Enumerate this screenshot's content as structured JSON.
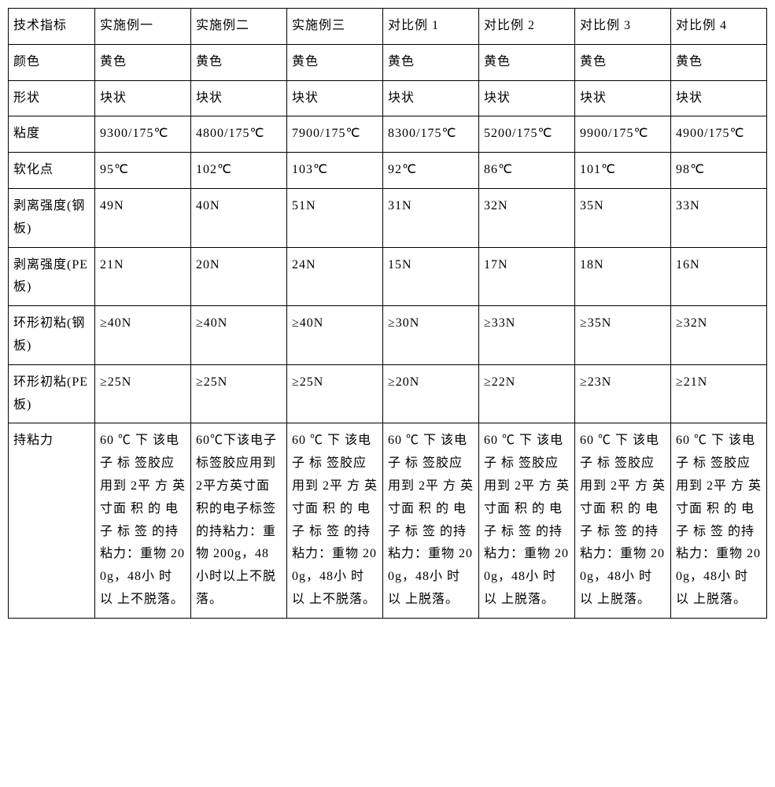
{
  "table": {
    "type": "table",
    "font_family": "SimSun",
    "font_size_pt": 12,
    "border_color": "#000000",
    "background_color": "#ffffff",
    "text_color": "#000000",
    "columns": [
      "技术指标",
      "实施例一",
      "实施例二",
      "实施例三",
      "对比例 1",
      "对比例 2",
      "对比例 3",
      "对比例 4"
    ],
    "rows": [
      {
        "label": "颜色",
        "values": [
          "黄色",
          "黄色",
          "黄色",
          "黄色",
          "黄色",
          "黄色",
          "黄色"
        ]
      },
      {
        "label": "形状",
        "values": [
          "块状",
          "块状",
          "块状",
          "块状",
          "块状",
          "块状",
          "块状"
        ]
      },
      {
        "label": "粘度",
        "values": [
          "9300/175℃",
          "4800/175℃",
          "7900/175℃",
          "8300/175℃",
          "5200/175℃",
          "9900/175℃",
          "4900/175℃"
        ]
      },
      {
        "label": "软化点",
        "values": [
          "95℃",
          "102℃",
          "103℃",
          "92℃",
          "86℃",
          "101℃",
          "98℃"
        ]
      },
      {
        "label": "剥离强度(钢板)",
        "values": [
          "49N",
          "40N",
          "51N",
          "31N",
          "32N",
          "35N",
          "33N"
        ]
      },
      {
        "label": "剥离强度(PE板)",
        "values": [
          "21N",
          "20N",
          "24N",
          "15N",
          "17N",
          "18N",
          "16N"
        ]
      },
      {
        "label": "环形初粘(钢板)",
        "values": [
          "≥40N",
          "≥40N",
          "≥40N",
          "≥30N",
          "≥33N",
          "≥35N",
          "≥32N"
        ]
      },
      {
        "label": "环形初粘(PE板)",
        "values": [
          "≥25N",
          "≥25N",
          "≥25N",
          "≥20N",
          "≥22N",
          "≥23N",
          "≥21N"
        ]
      },
      {
        "label": "持粘力",
        "values": [
          "60 ℃ 下 该电 子 标 签胶应用到 2平 方 英 寸面 积 的 电子 标 签 的持粘力：重物 200g，48小 时 以 上不脱落。",
          "60℃下该电子标签胶应用到 2平方英寸面积的电子标签的持粘力：重物 200g，48小时以上不脱落。",
          "60 ℃ 下 该电 子 标 签胶应用到 2平 方 英 寸面 积 的 电子 标 签 的持粘力：重物 200g，48小 时 以 上不脱落。",
          "60 ℃ 下 该电 子 标 签胶应用到 2平 方 英 寸面 积 的 电子 标 签 的持粘力：重物 200g，48小 时 以 上脱落。",
          "60 ℃ 下 该电 子 标 签胶应用到 2平 方 英 寸面 积 的 电子 标 签 的持粘力：重物 200g，48小 时 以 上脱落。",
          "60 ℃ 下 该电 子 标 签胶应用到 2平 方 英 寸面 积 的 电子 标 签 的持粘力：重物 200g，48小 时 以 上脱落。",
          "60 ℃ 下 该电 子 标 签胶应用到 2平 方 英 寸面 积 的 电子 标 签 的持粘力：重物 200g，48小 时 以 上脱落。"
        ]
      }
    ]
  }
}
